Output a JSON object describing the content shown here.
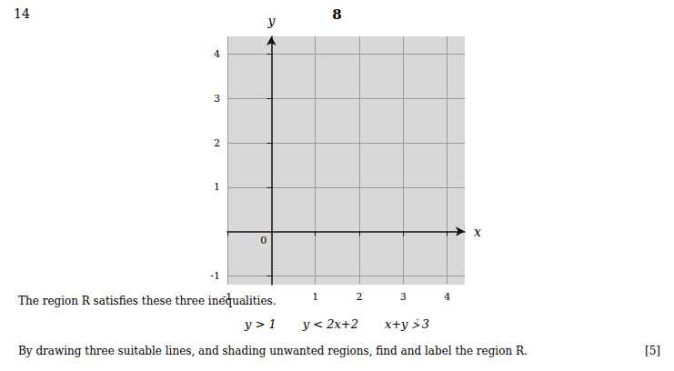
{
  "chart_data": {
    "type": "scatter",
    "title": "8",
    "x": [],
    "values": [],
    "xlabel": "x",
    "ylabel": "y",
    "xlim": [
      -1,
      4.4
    ],
    "ylim": [
      -1.2,
      4.4
    ],
    "xticks": [
      -1,
      1,
      2,
      3,
      4
    ],
    "yticks": [
      -1,
      1,
      2,
      3,
      4
    ],
    "grid": true,
    "annotations": [
      "14",
      "The region R satisfies these three inequalities.",
      "y > 1       y < 2x+2       x+y ⩼ 3",
      "By drawing three suitable lines, and shading unwanted regions, find and label the region R.",
      "[5]",
      "0"
    ]
  }
}
